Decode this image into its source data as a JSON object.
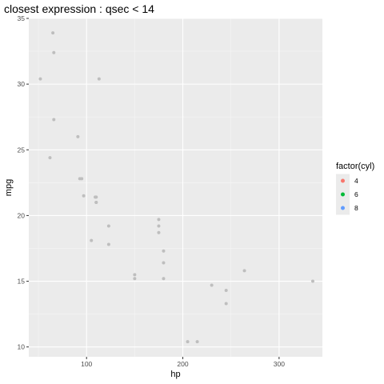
{
  "chart_data": {
    "type": "scatter",
    "title": "closest expression : qsec < 14",
    "xlabel": "hp",
    "ylabel": "mpg",
    "xlim": [
      40,
      345
    ],
    "ylim": [
      9.25,
      35.0
    ],
    "x_ticks": [
      100,
      200,
      300
    ],
    "y_ticks": [
      10,
      15,
      20,
      25,
      30,
      35
    ],
    "grid": true,
    "point_color": "#bebebe",
    "legend": {
      "title": "factor(cyl)",
      "placement": "right",
      "entries": [
        {
          "label": "4",
          "color": "#F8766D"
        },
        {
          "label": "6",
          "color": "#00BA38"
        },
        {
          "label": "8",
          "color": "#619CFF"
        }
      ]
    },
    "points": [
      {
        "x": 110,
        "y": 21.0
      },
      {
        "x": 110,
        "y": 21.0
      },
      {
        "x": 93,
        "y": 22.8
      },
      {
        "x": 110,
        "y": 21.4
      },
      {
        "x": 175,
        "y": 18.7
      },
      {
        "x": 105,
        "y": 18.1
      },
      {
        "x": 245,
        "y": 14.3
      },
      {
        "x": 62,
        "y": 24.4
      },
      {
        "x": 95,
        "y": 22.8
      },
      {
        "x": 123,
        "y": 19.2
      },
      {
        "x": 123,
        "y": 17.8
      },
      {
        "x": 180,
        "y": 16.4
      },
      {
        "x": 180,
        "y": 17.3
      },
      {
        "x": 180,
        "y": 15.2
      },
      {
        "x": 205,
        "y": 10.4
      },
      {
        "x": 215,
        "y": 10.4
      },
      {
        "x": 230,
        "y": 14.7
      },
      {
        "x": 66,
        "y": 32.4
      },
      {
        "x": 52,
        "y": 30.4
      },
      {
        "x": 65,
        "y": 33.9
      },
      {
        "x": 97,
        "y": 21.5
      },
      {
        "x": 150,
        "y": 15.5
      },
      {
        "x": 150,
        "y": 15.2
      },
      {
        "x": 245,
        "y": 13.3
      },
      {
        "x": 175,
        "y": 19.2
      },
      {
        "x": 66,
        "y": 27.3
      },
      {
        "x": 91,
        "y": 26.0
      },
      {
        "x": 113,
        "y": 30.4
      },
      {
        "x": 264,
        "y": 15.8
      },
      {
        "x": 175,
        "y": 19.7
      },
      {
        "x": 335,
        "y": 15.0
      },
      {
        "x": 109,
        "y": 21.4
      }
    ]
  }
}
